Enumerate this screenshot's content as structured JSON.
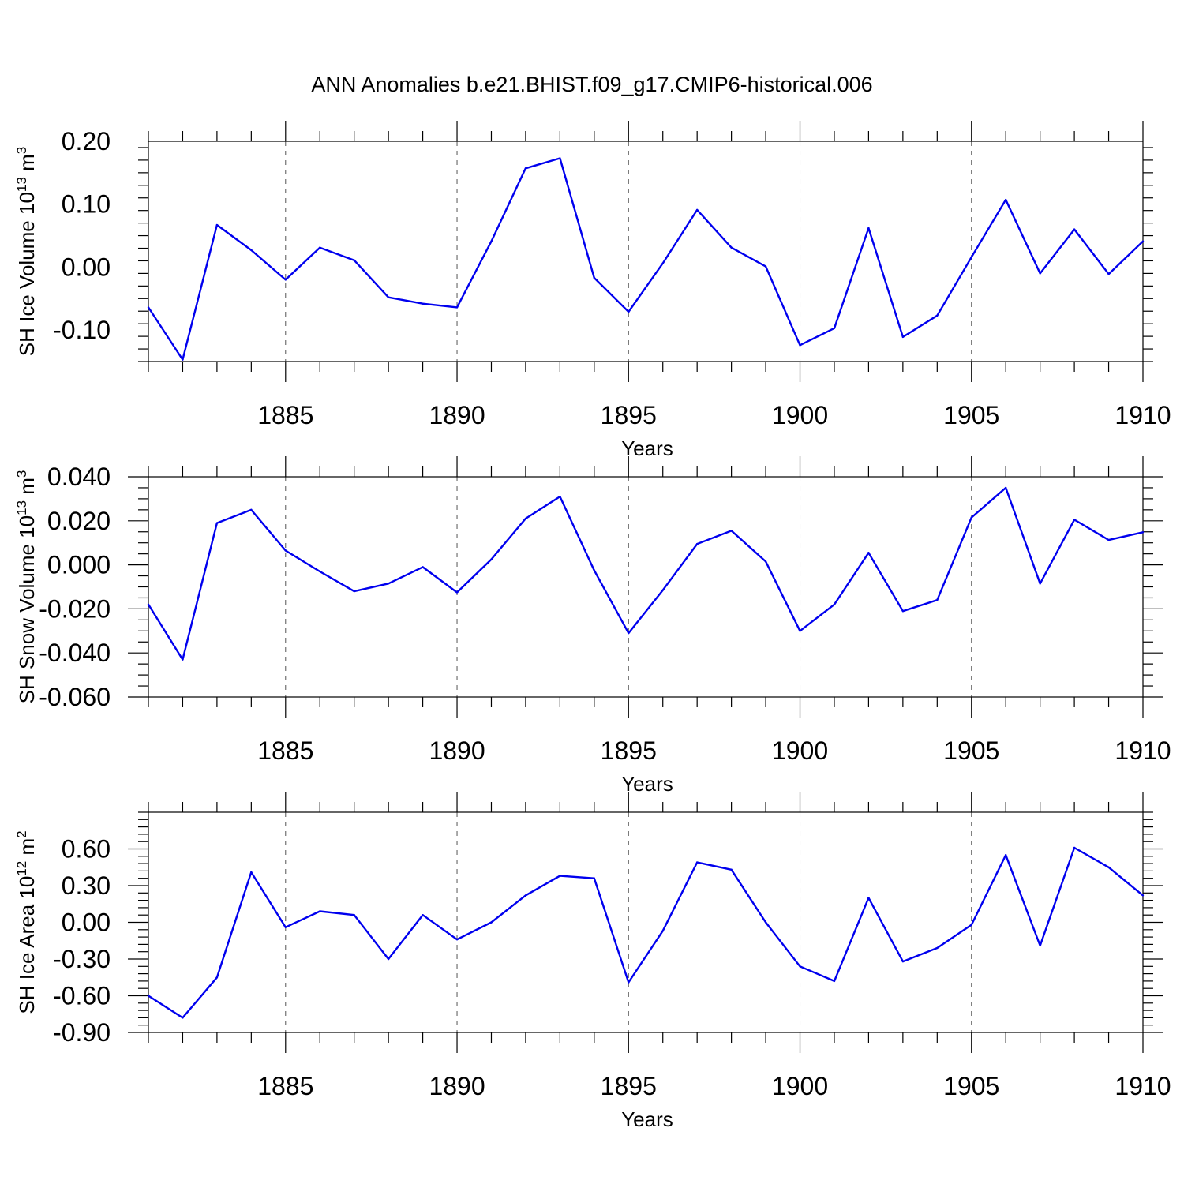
{
  "title": "ANN Anomalies b.e21.BHIST.f09_g17.CMIP6-historical.006",
  "colors": {
    "line": "#0000ee",
    "axes": "#000000",
    "grid": "#555555"
  },
  "chart_data": [
    {
      "type": "line",
      "ylabel": {
        "text": "SH Ice Volume 10",
        "sup1": "13",
        "unit": " m",
        "sup2": "3"
      },
      "xlabel": "Years",
      "xlim": [
        1881,
        1910
      ],
      "ylim": [
        -0.15,
        0.2
      ],
      "x_ticks": [
        "1885",
        "1890",
        "1895",
        "1900",
        "1905",
        "1910"
      ],
      "y_ticks": [
        "0.20",
        "0.10",
        "0.00",
        "-0.10"
      ],
      "y_tick_values": [
        0.2,
        0.1,
        0.0,
        -0.1
      ],
      "x": [
        1881,
        1882,
        1883,
        1884,
        1885,
        1886,
        1887,
        1888,
        1889,
        1890,
        1891,
        1892,
        1893,
        1894,
        1895,
        1896,
        1897,
        1898,
        1899,
        1900,
        1901,
        1902,
        1903,
        1904,
        1905,
        1906,
        1907,
        1908,
        1909,
        1910
      ],
      "values": [
        -0.064,
        -0.147,
        0.067,
        0.027,
        -0.02,
        0.031,
        0.011,
        -0.048,
        -0.058,
        -0.064,
        0.041,
        0.157,
        0.173,
        -0.017,
        -0.071,
        0.006,
        0.091,
        0.031,
        0.001,
        -0.124,
        -0.097,
        0.062,
        -0.111,
        -0.077,
        0.016,
        0.107,
        -0.01,
        0.06,
        -0.011,
        0.041
      ]
    },
    {
      "type": "line",
      "ylabel": {
        "text": "SH Snow Volume 10",
        "sup1": "13",
        "unit": " m",
        "sup2": "3"
      },
      "xlabel": "Years",
      "xlim": [
        1881,
        1910
      ],
      "ylim": [
        -0.06,
        0.04
      ],
      "x_ticks": [
        "1885",
        "1890",
        "1895",
        "1900",
        "1905",
        "1910"
      ],
      "y_ticks": [
        "0.040",
        "0.020",
        "0.000",
        "-0.020",
        "-0.040",
        "-0.060"
      ],
      "y_tick_values": [
        0.04,
        0.02,
        0.0,
        -0.02,
        -0.04,
        -0.06
      ],
      "x": [
        1881,
        1882,
        1883,
        1884,
        1885,
        1886,
        1887,
        1888,
        1889,
        1890,
        1891,
        1892,
        1893,
        1894,
        1895,
        1896,
        1897,
        1898,
        1899,
        1900,
        1901,
        1902,
        1903,
        1904,
        1905,
        1906,
        1907,
        1908,
        1909,
        1910
      ],
      "values": [
        -0.018,
        -0.043,
        0.019,
        0.025,
        0.0065,
        -0.003,
        -0.012,
        -0.0085,
        -0.001,
        -0.0125,
        0.0025,
        0.021,
        0.031,
        -0.0025,
        -0.031,
        -0.0115,
        0.0095,
        0.0155,
        0.0015,
        -0.03,
        -0.018,
        0.0055,
        -0.021,
        -0.016,
        0.0215,
        0.035,
        -0.0085,
        0.0205,
        0.0113,
        0.0148
      ]
    },
    {
      "type": "line",
      "ylabel": {
        "text": "SH Ice Area 10",
        "sup1": "12",
        "unit": " m",
        "sup2": "2"
      },
      "xlabel": "Years",
      "xlim": [
        1881,
        1910
      ],
      "ylim": [
        -0.9,
        0.9
      ],
      "x_ticks": [
        "1885",
        "1890",
        "1895",
        "1900",
        "1905",
        "1910"
      ],
      "y_ticks": [
        "0.60",
        "0.30",
        "0.00",
        "-0.30",
        "-0.60",
        "-0.90"
      ],
      "y_tick_values": [
        0.6,
        0.3,
        0.0,
        -0.3,
        -0.6,
        -0.9
      ],
      "x": [
        1881,
        1882,
        1883,
        1884,
        1885,
        1886,
        1887,
        1888,
        1889,
        1890,
        1891,
        1892,
        1893,
        1894,
        1895,
        1896,
        1897,
        1898,
        1899,
        1900,
        1901,
        1902,
        1903,
        1904,
        1905,
        1906,
        1907,
        1908,
        1909,
        1910
      ],
      "values": [
        -0.6,
        -0.78,
        -0.45,
        0.41,
        -0.04,
        0.09,
        0.06,
        -0.3,
        0.06,
        -0.14,
        0.0,
        0.22,
        0.38,
        0.36,
        -0.49,
        -0.07,
        0.49,
        0.43,
        0.0,
        -0.36,
        -0.48,
        0.2,
        -0.32,
        -0.21,
        -0.02,
        0.55,
        -0.19,
        0.61,
        0.45,
        0.22
      ]
    }
  ]
}
